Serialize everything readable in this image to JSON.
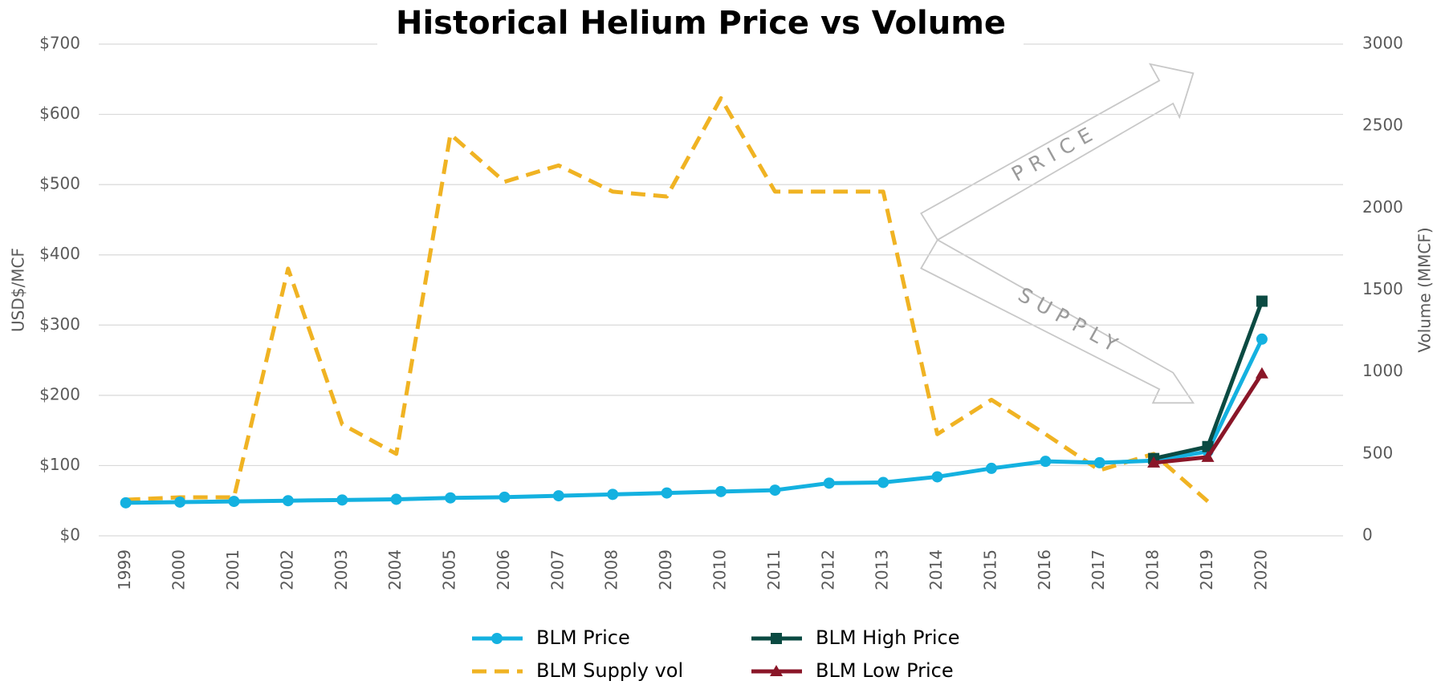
{
  "chart_data": {
    "type": "line",
    "title": "Historical Helium Price vs Volume",
    "ylabel": "USD$/MCF",
    "y2label": "Volume (MMCF)",
    "categories": [
      "1999",
      "2000",
      "2001",
      "2002",
      "2003",
      "2004",
      "2005",
      "2006",
      "2007",
      "2008",
      "2009",
      "2010",
      "2011",
      "2012",
      "2013",
      "2014",
      "2015",
      "2016",
      "2017",
      "2018",
      "2019",
      "2020"
    ],
    "ylim": [
      0,
      700
    ],
    "yticks": [
      {
        "value": 0,
        "label": "$0"
      },
      {
        "value": 100,
        "label": "$100"
      },
      {
        "value": 200,
        "label": "$200"
      },
      {
        "value": 300,
        "label": "$300"
      },
      {
        "value": 400,
        "label": "$400"
      },
      {
        "value": 500,
        "label": "$500"
      },
      {
        "value": 600,
        "label": "$600"
      },
      {
        "value": 700,
        "label": "$700"
      }
    ],
    "y2lim": [
      0,
      3000
    ],
    "y2ticks": [
      0,
      500,
      1000,
      1500,
      2000,
      2500,
      3000
    ],
    "grid": true,
    "series": [
      {
        "name": "BLM Price",
        "color": "#14b1e0",
        "marker": "circle",
        "dash": false,
        "values": [
          47,
          48,
          49,
          50,
          51,
          52,
          54,
          55,
          57,
          59,
          61,
          63,
          65,
          75,
          76,
          84,
          96,
          106,
          104,
          107,
          120,
          280
        ]
      },
      {
        "name": "BLM Supply vol",
        "color": "#f0b323",
        "marker": "none",
        "dash": true,
        "axis": "y2",
        "values": [
          220,
          235,
          235,
          1630,
          680,
          500,
          2450,
          2160,
          2260,
          2100,
          2070,
          2670,
          2100,
          2100,
          2100,
          620,
          830,
          620,
          400,
          500,
          210,
          null
        ]
      },
      {
        "name": "BLM High Price",
        "color": "#0b4a42",
        "marker": "square",
        "dash": false,
        "values": [
          null,
          null,
          null,
          null,
          null,
          null,
          null,
          null,
          null,
          null,
          null,
          null,
          null,
          null,
          null,
          null,
          null,
          null,
          null,
          110,
          127,
          334
        ]
      },
      {
        "name": "BLM Low Price",
        "color": "#8a1628",
        "marker": "triangle",
        "dash": false,
        "values": [
          null,
          null,
          null,
          null,
          null,
          null,
          null,
          null,
          null,
          null,
          null,
          null,
          null,
          null,
          null,
          null,
          null,
          null,
          null,
          104,
          112,
          231
        ]
      }
    ],
    "annotations": [
      "PRICE",
      "SUPPLY"
    ]
  }
}
